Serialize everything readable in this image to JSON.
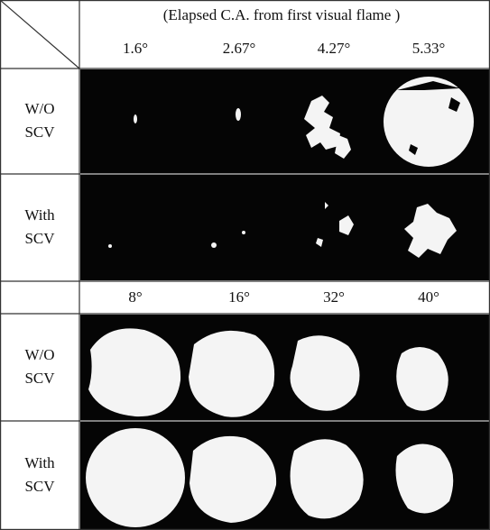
{
  "header": {
    "title": "(Elapsed C.A. from first visual flame )",
    "angles": [
      "1.6°",
      "2.67°",
      "4.27°",
      "5.33°"
    ]
  },
  "mid_header": {
    "angles": [
      "8°",
      "16°",
      "32°",
      "40°"
    ]
  },
  "rows": [
    {
      "label": [
        "W/O",
        "SCV"
      ]
    },
    {
      "label": [
        "With",
        "SCV"
      ]
    },
    {
      "label": [
        "W/O",
        "SCV"
      ]
    },
    {
      "label": [
        "With",
        "SCV"
      ]
    }
  ]
}
